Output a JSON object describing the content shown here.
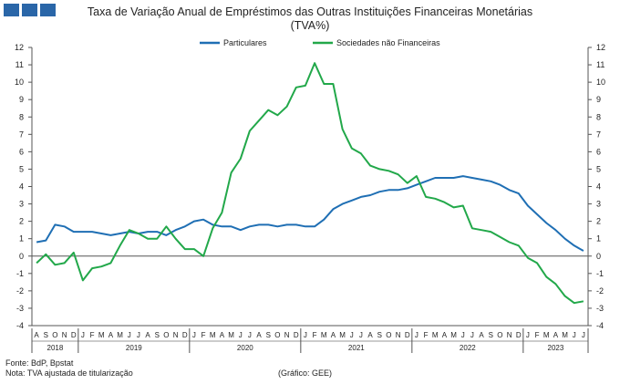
{
  "header": {
    "title_line1": "Taxa de Variação Anual de Empréstimos das Outras Instituições Financeiras Monetárias",
    "title_line2": "(TVA%)"
  },
  "footer": {
    "source": "Fonte: BdP, Bpstat",
    "note": "Nota: TVA ajustada de titularização",
    "credit": "(Gráfico: GEE)"
  },
  "colors": {
    "logo": "#2a66a8",
    "particulares": "#1f6fb4",
    "sociedades": "#22a84a"
  },
  "chart_data": {
    "type": "line",
    "ylim": [
      -4,
      12
    ],
    "yticks": [
      -4,
      -3,
      -2,
      -1,
      0,
      1,
      2,
      3,
      4,
      5,
      6,
      7,
      8,
      9,
      10,
      11,
      12
    ],
    "month_labels": [
      "A",
      "S",
      "O",
      "N",
      "D",
      "J",
      "F",
      "M",
      "A",
      "M",
      "J",
      "J",
      "A",
      "S",
      "O",
      "N",
      "D",
      "J",
      "F",
      "M",
      "A",
      "M",
      "J",
      "J",
      "A",
      "S",
      "O",
      "N",
      "D",
      "J",
      "F",
      "M",
      "A",
      "M",
      "J",
      "J",
      "A",
      "S",
      "O",
      "N",
      "D",
      "J",
      "F",
      "M",
      "A",
      "M",
      "J",
      "J",
      "A",
      "S",
      "O",
      "N",
      "D",
      "J",
      "F",
      "M",
      "A",
      "M",
      "J",
      "J"
    ],
    "years": [
      {
        "label": "2018",
        "start": 0,
        "count": 5
      },
      {
        "label": "2019",
        "start": 5,
        "count": 12
      },
      {
        "label": "2020",
        "start": 17,
        "count": 12
      },
      {
        "label": "2021",
        "start": 29,
        "count": 12
      },
      {
        "label": "2022",
        "start": 41,
        "count": 12
      },
      {
        "label": "2023",
        "start": 53,
        "count": 7
      }
    ],
    "legend_position": "top-center",
    "series": [
      {
        "name": "Particulares",
        "values": [
          0.8,
          0.9,
          1.8,
          1.7,
          1.4,
          1.4,
          1.4,
          1.3,
          1.2,
          1.3,
          1.4,
          1.3,
          1.4,
          1.4,
          1.2,
          1.5,
          1.7,
          2.0,
          2.1,
          1.8,
          1.7,
          1.7,
          1.5,
          1.7,
          1.8,
          1.8,
          1.7,
          1.8,
          1.8,
          1.7,
          1.7,
          2.1,
          2.7,
          3.0,
          3.2,
          3.4,
          3.5,
          3.7,
          3.8,
          3.8,
          3.9,
          4.1,
          4.3,
          4.5,
          4.5,
          4.5,
          4.6,
          4.5,
          4.4,
          4.3,
          4.1,
          3.8,
          3.6,
          2.9,
          2.4,
          1.9,
          1.5,
          1.0,
          0.6,
          0.3
        ]
      },
      {
        "name": "Sociedades não Financeiras",
        "values": [
          -0.4,
          0.1,
          -0.5,
          -0.4,
          0.2,
          -1.4,
          -0.7,
          -0.6,
          -0.4,
          0.6,
          1.5,
          1.3,
          1.0,
          1.0,
          1.7,
          1.0,
          0.4,
          0.4,
          0.0,
          1.6,
          2.5,
          4.8,
          5.6,
          7.2,
          7.8,
          8.4,
          8.1,
          8.6,
          9.7,
          9.8,
          11.1,
          9.9,
          9.9,
          7.3,
          6.2,
          5.9,
          5.2,
          5.0,
          4.9,
          4.7,
          4.2,
          4.6,
          3.4,
          3.3,
          3.1,
          2.8,
          2.9,
          1.6,
          1.5,
          1.4,
          1.1,
          0.8,
          0.6,
          -0.1,
          -0.4,
          -1.2,
          -1.6,
          -2.3,
          -2.7,
          -2.6
        ]
      }
    ]
  }
}
